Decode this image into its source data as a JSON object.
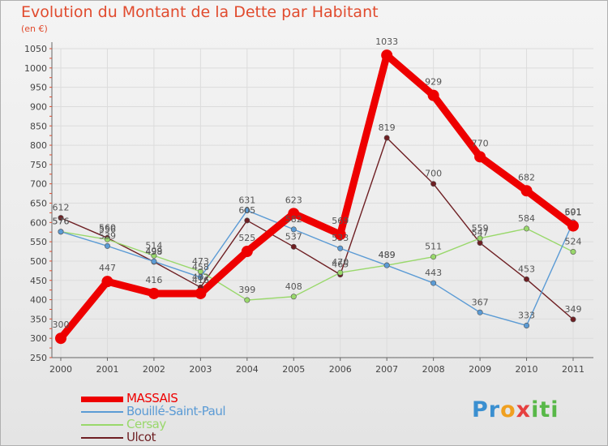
{
  "title": "Evolution du Montant de la Dette par Habitant",
  "unit": "(en €)",
  "logo": "Proxiti",
  "chart_data": {
    "type": "line",
    "title": "Evolution du Montant de la Dette par Habitant",
    "ylabel": "(en €)",
    "x": [
      "2000",
      "2001",
      "2002",
      "2003",
      "2004",
      "2005",
      "2006",
      "2007",
      "2008",
      "2009",
      "2010",
      "2011"
    ],
    "ylim": [
      250,
      1050
    ],
    "yticks": [
      250,
      300,
      350,
      400,
      450,
      500,
      550,
      600,
      650,
      700,
      750,
      800,
      850,
      900,
      950,
      1000,
      1050
    ],
    "grid": true,
    "legend": "bottom-left",
    "series": [
      {
        "name": "MASSAIS",
        "color": "#ee0000",
        "values": [
          300,
          447,
          416,
          416,
          525,
          623,
          569,
          1033,
          929,
          770,
          682,
          591
        ]
      },
      {
        "name": "Bouillé-Saint-Paul",
        "color": "#5b9bd5",
        "values": [
          576,
          539,
          499,
          458,
          631,
          582,
          533,
          489,
          443,
          367,
          333,
          601
        ]
      },
      {
        "name": "Cersay",
        "color": "#99d86b",
        "values": [
          576,
          556,
          514,
          473,
          399,
          408,
          470,
          489,
          511,
          559,
          584,
          524
        ]
      },
      {
        "name": "Ulcot",
        "color": "#6e1f23",
        "values": [
          612,
          560,
          498,
          432,
          605,
          537,
          465,
          819,
          700,
          547,
          453,
          349
        ]
      }
    ]
  }
}
